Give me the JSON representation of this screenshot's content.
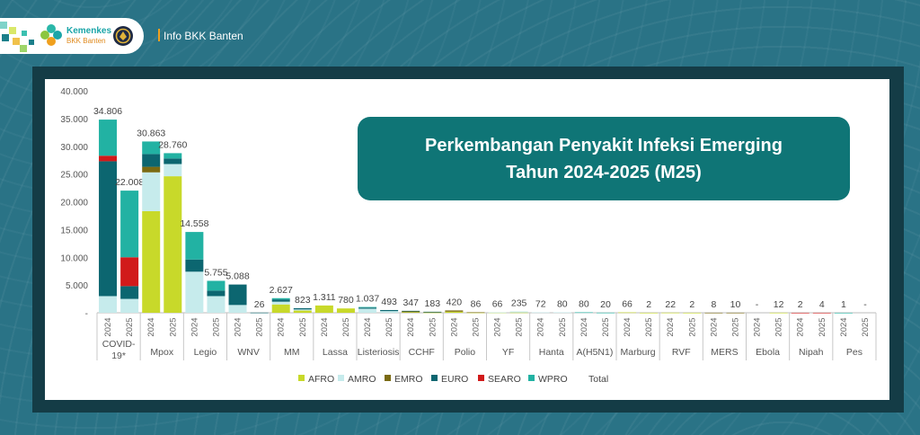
{
  "header": {
    "logo_title": "Kemenkes",
    "logo_sub": "BKK Banten",
    "info_text": "Info BKK Banten"
  },
  "title": {
    "line1": "Perkembangan Penyakit Infeksi Emerging",
    "line2": "Tahun 2024-2025 (M25)"
  },
  "colors": {
    "AFRO": "#c8d92a",
    "AMRO": "#c6ebec",
    "EMRO": "#7a6a12",
    "EURO": "#0c6670",
    "SEARO": "#d11a1a",
    "WPRO": "#22b2a3",
    "Total": "#ffffff"
  },
  "chart_data": {
    "type": "bar",
    "stacked": true,
    "ylim": [
      0,
      40000
    ],
    "yticks": [
      "-",
      "5.000",
      "10.000",
      "15.000",
      "20.000",
      "25.000",
      "30.000",
      "35.000",
      "40.000"
    ],
    "years": [
      "2024",
      "2025"
    ],
    "series_names": [
      "AFRO",
      "AMRO",
      "EMRO",
      "EURO",
      "SEARO",
      "WPRO",
      "Total"
    ],
    "categories": [
      {
        "name": "COVID-19*",
        "bars": [
          {
            "total_label": "34.806",
            "values": [
              0,
              3000,
              0,
              24300,
              1000,
              6506
            ]
          },
          {
            "total_label": "22.008",
            "values": [
              0,
              2500,
              0,
              2300,
              5200,
              12008
            ]
          }
        ]
      },
      {
        "name": "Mpox",
        "bars": [
          {
            "total_label": "30.863",
            "values": [
              18300,
              7000,
              1000,
              2300,
              0,
              2263
            ]
          },
          {
            "total_label": "28.760",
            "values": [
              24600,
              2200,
              0,
              1000,
              0,
              960
            ]
          }
        ]
      },
      {
        "name": "Legio",
        "bars": [
          {
            "total_label": "14.558",
            "values": [
              0,
              7400,
              0,
              2200,
              0,
              4958
            ]
          },
          {
            "total_label": "5.755",
            "values": [
              0,
              3000,
              0,
              1000,
              0,
              1755
            ]
          }
        ]
      },
      {
        "name": "WNV",
        "bars": [
          {
            "total_label": "5.088",
            "values": [
              0,
              1400,
              0,
              3688,
              0,
              0
            ]
          },
          {
            "total_label": "26",
            "values": [
              0,
              0,
              0,
              26,
              0,
              0
            ]
          }
        ]
      },
      {
        "name": "MM",
        "bars": [
          {
            "total_label": "2.627",
            "values": [
              1500,
              500,
              0,
              400,
              0,
              227
            ]
          },
          {
            "total_label": "823",
            "values": [
              400,
              200,
              0,
              223,
              0,
              0
            ]
          }
        ]
      },
      {
        "name": "Lassa",
        "bars": [
          {
            "total_label": "1.311",
            "values": [
              1311,
              0,
              0,
              0,
              0,
              0
            ]
          },
          {
            "total_label": "780",
            "values": [
              780,
              0,
              0,
              0,
              0,
              0
            ]
          }
        ]
      },
      {
        "name": "Listeriosis",
        "bars": [
          {
            "total_label": "1.037",
            "values": [
              0,
              737,
              0,
              200,
              0,
              100
            ]
          },
          {
            "total_label": "493",
            "values": [
              0,
              300,
              0,
              193,
              0,
              0
            ]
          }
        ]
      },
      {
        "name": "CCHF",
        "bars": [
          {
            "total_label": "347",
            "values": [
              100,
              0,
              200,
              47,
              0,
              0
            ]
          },
          {
            "total_label": "183",
            "values": [
              50,
              0,
              100,
              33,
              0,
              0
            ]
          }
        ]
      },
      {
        "name": "Polio",
        "bars": [
          {
            "total_label": "420",
            "values": [
              200,
              0,
              220,
              0,
              0,
              0
            ]
          },
          {
            "total_label": "86",
            "values": [
              40,
              0,
              46,
              0,
              0,
              0
            ]
          }
        ]
      },
      {
        "name": "YF",
        "bars": [
          {
            "total_label": "66",
            "values": [
              30,
              36,
              0,
              0,
              0,
              0
            ]
          },
          {
            "total_label": "235",
            "values": [
              50,
              185,
              0,
              0,
              0,
              0
            ]
          }
        ]
      },
      {
        "name": "Hanta",
        "bars": [
          {
            "total_label": "72",
            "values": [
              0,
              72,
              0,
              0,
              0,
              0
            ]
          },
          {
            "total_label": "80",
            "values": [
              0,
              80,
              0,
              0,
              0,
              0
            ]
          }
        ]
      },
      {
        "name": "A(H5N1)",
        "bars": [
          {
            "total_label": "80",
            "values": [
              0,
              70,
              0,
              0,
              0,
              10
            ]
          },
          {
            "total_label": "20",
            "values": [
              0,
              15,
              0,
              0,
              0,
              5
            ]
          }
        ]
      },
      {
        "name": "Marburg",
        "bars": [
          {
            "total_label": "66",
            "values": [
              66,
              0,
              0,
              0,
              0,
              0
            ]
          },
          {
            "total_label": "2",
            "values": [
              2,
              0,
              0,
              0,
              0,
              0
            ]
          }
        ]
      },
      {
        "name": "RVF",
        "bars": [
          {
            "total_label": "22",
            "values": [
              22,
              0,
              0,
              0,
              0,
              0
            ]
          },
          {
            "total_label": "2",
            "values": [
              2,
              0,
              0,
              0,
              0,
              0
            ]
          }
        ]
      },
      {
        "name": "MERS",
        "bars": [
          {
            "total_label": "8",
            "values": [
              0,
              0,
              8,
              0,
              0,
              0
            ]
          },
          {
            "total_label": "10",
            "values": [
              0,
              0,
              10,
              0,
              0,
              0
            ]
          }
        ]
      },
      {
        "name": "Ebola",
        "bars": [
          {
            "total_label": "-",
            "values": [
              0,
              0,
              0,
              0,
              0,
              0
            ]
          },
          {
            "total_label": "12",
            "values": [
              12,
              0,
              0,
              0,
              0,
              0
            ]
          }
        ]
      },
      {
        "name": "Nipah",
        "bars": [
          {
            "total_label": "2",
            "values": [
              0,
              0,
              0,
              0,
              2,
              0
            ]
          },
          {
            "total_label": "4",
            "values": [
              0,
              0,
              0,
              0,
              4,
              0
            ]
          }
        ]
      },
      {
        "name": "Pes",
        "bars": [
          {
            "total_label": "1",
            "values": [
              0,
              0,
              0,
              0,
              0,
              1
            ]
          },
          {
            "total_label": "-",
            "values": [
              0,
              0,
              0,
              0,
              0,
              0
            ]
          }
        ]
      }
    ]
  }
}
